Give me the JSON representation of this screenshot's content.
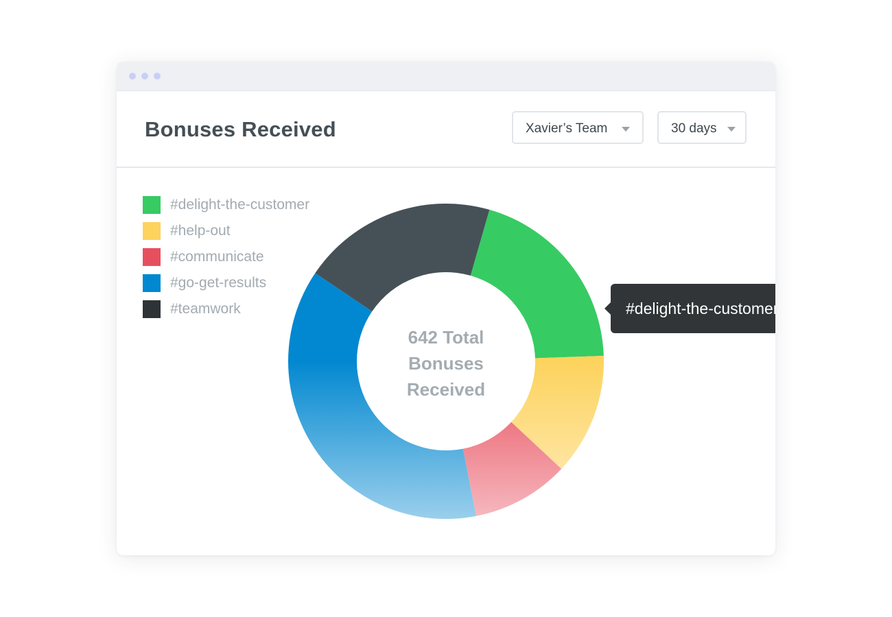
{
  "window": {
    "dots": [
      "dot",
      "dot",
      "dot"
    ]
  },
  "header": {
    "title": "Bonuses Received",
    "team_select": {
      "value": "Xavier’s Team",
      "icon": "caret-down-icon"
    },
    "range_select": {
      "value": "30 days",
      "icon": "caret-down-icon"
    }
  },
  "legend": [
    {
      "label": "#delight-the-customer",
      "color": "#37cb63"
    },
    {
      "label": "#help-out",
      "color": "#fdd35e"
    },
    {
      "label": "#communicate",
      "color": "#e84f5e"
    },
    {
      "label": "#go-get-results",
      "color": "#0288d0"
    },
    {
      "label": "#teamwork",
      "color": "#2e3338"
    }
  ],
  "center": {
    "line1": "642 Total",
    "line2": "Bonuses",
    "line3": "Received"
  },
  "tooltip": {
    "label": "#delight-the-customer"
  },
  "chart_data": {
    "type": "pie",
    "title": "Bonuses Received",
    "total": 642,
    "slices": [
      {
        "name": "#teamwork",
        "fraction": 0.2,
        "color": "#465157"
      },
      {
        "name": "#delight-the-customer",
        "fraction": 0.2,
        "color": "#37cb63"
      },
      {
        "name": "#help-out",
        "fraction": 0.125,
        "color": "#fdd35e"
      },
      {
        "name": "#communicate",
        "fraction": 0.1,
        "color": "#e84f5e"
      },
      {
        "name": "#go-get-results",
        "fraction": 0.375,
        "color": "#0288d0"
      }
    ],
    "highlighted": "#delight-the-customer"
  }
}
